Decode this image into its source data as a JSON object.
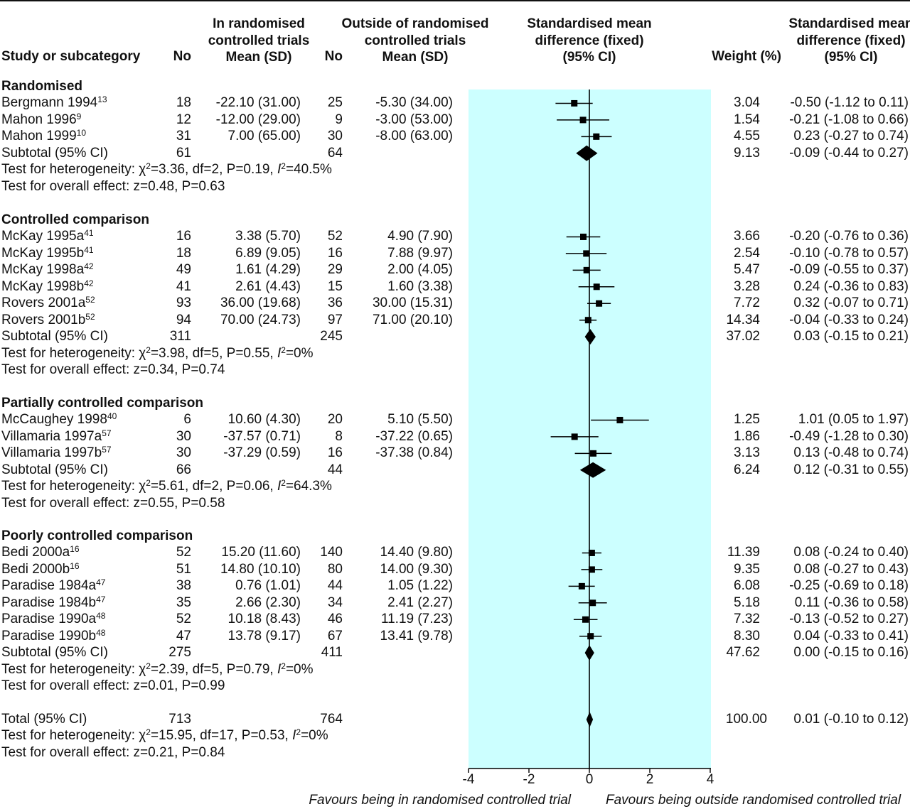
{
  "headers": {
    "study": "Study or subcategory",
    "n1": "No",
    "rct": [
      "In randomised",
      "controlled trials",
      "Mean (SD)"
    ],
    "n2": "No",
    "out": [
      "Outside of randomised",
      "controlled trials",
      "Mean (SD)"
    ],
    "smd_plot": [
      "Standardised mean",
      "difference (fixed)",
      "(95% CI)"
    ],
    "weight": "Weight (%)",
    "smd_text": [
      "Standardised mean",
      "difference (fixed)",
      "(95% CI)"
    ]
  },
  "colors": {
    "panel": "#ccffff",
    "marker": "#000000"
  },
  "groups": [
    {
      "title": "Randomised",
      "studies": [
        {
          "name": "Bergmann 1994",
          "ref": "13",
          "n1": "18",
          "m1": "-22.10 (31.00)",
          "n2": "25",
          "m2": "-5.30 (34.00)",
          "weight": "3.04",
          "ci": "-0.50 (-1.12 to 0.11)",
          "est": -0.5,
          "lo": -1.12,
          "hi": 0.11
        },
        {
          "name": "Mahon 1996",
          "ref": "9",
          "n1": "12",
          "m1": "-12.00 (29.00)",
          "n2": "9",
          "m2": "-3.00 (53.00)",
          "weight": "1.54",
          "ci": "-0.21 (-1.08 to 0.66)",
          "est": -0.21,
          "lo": -1.08,
          "hi": 0.66
        },
        {
          "name": "Mahon 1999",
          "ref": "10",
          "n1": "31",
          "m1": "7.00 (65.00)",
          "n2": "30",
          "m2": "-8.00 (63.00)",
          "weight": "4.55",
          "ci": "0.23 (-0.27 to 0.74)",
          "est": 0.23,
          "lo": -0.27,
          "hi": 0.74
        }
      ],
      "subtotal": {
        "label": "Subtotal (95% CI)",
        "n1": "61",
        "n2": "64",
        "weight": "9.13",
        "ci": "-0.09 (-0.44 to 0.27)",
        "est": -0.09,
        "lo": -0.44,
        "hi": 0.27
      },
      "het": {
        "pre": "Test for heterogeneity: ",
        "chi": "χ",
        "sup": "2",
        "post": "=3.36, df=2, P=0.19, ",
        "i": "I",
        "isup": "2",
        "ival": "=40.5%"
      },
      "overall": "Test for overall effect: z=0.48, P=0.63"
    },
    {
      "title": "Controlled comparison",
      "studies": [
        {
          "name": "McKay 1995a",
          "ref": "41",
          "n1": "16",
          "m1": "3.38 (5.70)",
          "n2": "52",
          "m2": "4.90 (7.90)",
          "weight": "3.66",
          "ci": "-0.20 (-0.76 to 0.36)",
          "est": -0.2,
          "lo": -0.76,
          "hi": 0.36
        },
        {
          "name": "McKay 1995b",
          "ref": "41",
          "n1": "18",
          "m1": "6.89 (9.05)",
          "n2": "16",
          "m2": "7.88 (9.97)",
          "weight": "2.54",
          "ci": "-0.10 (-0.78 to 0.57)",
          "est": -0.1,
          "lo": -0.78,
          "hi": 0.57
        },
        {
          "name": "McKay 1998a",
          "ref": "42",
          "n1": "49",
          "m1": "1.61 (4.29)",
          "n2": "29",
          "m2": "2.00 (4.05)",
          "weight": "5.47",
          "ci": "-0.09 (-0.55 to 0.37)",
          "est": -0.09,
          "lo": -0.55,
          "hi": 0.37
        },
        {
          "name": "McKay 1998b",
          "ref": "42",
          "n1": "41",
          "m1": "2.61 (4.43)",
          "n2": "15",
          "m2": "1.60 (3.38)",
          "weight": "3.28",
          "ci": "0.24 (-0.36 to 0.83)",
          "est": 0.24,
          "lo": -0.36,
          "hi": 0.83
        },
        {
          "name": "Rovers 2001a",
          "ref": "52",
          "n1": "93",
          "m1": "36.00 (19.68)",
          "n2": "36",
          "m2": "30.00 (15.31)",
          "weight": "7.72",
          "ci": "0.32 (-0.07 to 0.71)",
          "est": 0.32,
          "lo": -0.07,
          "hi": 0.71
        },
        {
          "name": "Rovers 2001b",
          "ref": "52",
          "n1": "94",
          "m1": "70.00 (24.73)",
          "n2": "97",
          "m2": "71.00 (20.10)",
          "weight": "14.34",
          "ci": "-0.04 (-0.33 to 0.24)",
          "est": -0.04,
          "lo": -0.33,
          "hi": 0.24
        }
      ],
      "subtotal": {
        "label": "Subtotal (95% CI)",
        "n1": "311",
        "n2": "245",
        "weight": "37.02",
        "ci": "0.03 (-0.15 to 0.21)",
        "est": 0.03,
        "lo": -0.15,
        "hi": 0.21
      },
      "het": {
        "pre": "Test for heterogeneity: ",
        "chi": "χ",
        "sup": "2",
        "post": "=3.98, df=5, P=0.55, ",
        "i": "I",
        "isup": "2",
        "ival": "=0%"
      },
      "overall": "Test for overall effect: z=0.34, P=0.74"
    },
    {
      "title": "Partially controlled comparison",
      "studies": [
        {
          "name": "McCaughey 1998",
          "ref": "40",
          "n1": "6",
          "m1": "10.60 (4.30)",
          "n2": "20",
          "m2": "5.10 (5.50)",
          "weight": "1.25",
          "ci": "1.01 (0.05 to 1.97)",
          "est": 1.01,
          "lo": 0.05,
          "hi": 1.97
        },
        {
          "name": "Villamaria 1997a",
          "ref": "57",
          "n1": "30",
          "m1": "-37.57 (0.71)",
          "n2": "8",
          "m2": "-37.22 (0.65)",
          "weight": "1.86",
          "ci": "-0.49 (-1.28 to 0.30)",
          "est": -0.49,
          "lo": -1.28,
          "hi": 0.3
        },
        {
          "name": "Villamaria 1997b",
          "ref": "57",
          "n1": "30",
          "m1": "-37.29 (0.59)",
          "n2": "16",
          "m2": "-37.38 (0.84)",
          "weight": "3.13",
          "ci": "0.13 (-0.48 to 0.74)",
          "est": 0.13,
          "lo": -0.48,
          "hi": 0.74
        }
      ],
      "subtotal": {
        "label": "Subtotal (95% CI)",
        "n1": "66",
        "n2": "44",
        "weight": "6.24",
        "ci": "0.12 (-0.31 to 0.55)",
        "est": 0.12,
        "lo": -0.31,
        "hi": 0.55
      },
      "het": {
        "pre": "Test for heterogeneity: ",
        "chi": "χ",
        "sup": "2",
        "post": "=5.61, df=2, P=0.06, ",
        "i": "I",
        "isup": "2",
        "ival": "=64.3%"
      },
      "overall": "Test for overall effect: z=0.55, P=0.58"
    },
    {
      "title": "Poorly controlled comparison",
      "studies": [
        {
          "name": "Bedi 2000a",
          "ref": "16",
          "n1": "52",
          "m1": "15.20 (11.60)",
          "n2": "140",
          "m2": "14.40 (9.80)",
          "weight": "11.39",
          "ci": "0.08 (-0.24 to 0.40)",
          "est": 0.08,
          "lo": -0.24,
          "hi": 0.4
        },
        {
          "name": "Bedi 2000b",
          "ref": "16",
          "n1": "51",
          "m1": "14.80 (10.10)",
          "n2": "80",
          "m2": "14.00 (9.30)",
          "weight": "9.35",
          "ci": "0.08 (-0.27 to 0.43)",
          "est": 0.08,
          "lo": -0.27,
          "hi": 0.43
        },
        {
          "name": "Paradise 1984a",
          "ref": "47",
          "n1": "38",
          "m1": "0.76 (1.01)",
          "n2": "44",
          "m2": "1.05 (1.22)",
          "weight": "6.08",
          "ci": "-0.25 (-0.69 to 0.18)",
          "est": -0.25,
          "lo": -0.69,
          "hi": 0.18
        },
        {
          "name": "Paradise 1984b",
          "ref": "47",
          "n1": "35",
          "m1": "2.66 (2.30)",
          "n2": "34",
          "m2": "2.41 (2.27)",
          "weight": "5.18",
          "ci": "0.11 (-0.36 to 0.58)",
          "est": 0.11,
          "lo": -0.36,
          "hi": 0.58
        },
        {
          "name": "Paradise 1990a",
          "ref": "48",
          "n1": "52",
          "m1": "10.18 (8.43)",
          "n2": "46",
          "m2": "11.19 (7.23)",
          "weight": "7.32",
          "ci": "-0.13 (-0.52 to 0.27)",
          "est": -0.13,
          "lo": -0.52,
          "hi": 0.27
        },
        {
          "name": "Paradise 1990b",
          "ref": "48",
          "n1": "47",
          "m1": "13.78 (9.17)",
          "n2": "67",
          "m2": "13.41 (9.78)",
          "weight": "8.30",
          "ci": "0.04 (-0.33 to 0.41)",
          "est": 0.04,
          "lo": -0.33,
          "hi": 0.41
        }
      ],
      "subtotal": {
        "label": "Subtotal (95% CI)",
        "n1": "275",
        "n2": "411",
        "weight": "47.62",
        "ci": "0.00 (-0.15 to 0.16)",
        "est": 0.0,
        "lo": -0.15,
        "hi": 0.16
      },
      "het": {
        "pre": "Test for heterogeneity: ",
        "chi": "χ",
        "sup": "2",
        "post": "=2.39, df=5, P=0.79, ",
        "i": "I",
        "isup": "2",
        "ival": "=0%"
      },
      "overall": "Test for overall effect: z=0.01, P=0.99"
    }
  ],
  "total": {
    "label": "Total (95% CI)",
    "n1": "713",
    "n2": "764",
    "weight": "100.00",
    "ci": "0.01 (-0.10 to 0.12)",
    "est": 0.01,
    "lo": -0.1,
    "hi": 0.12,
    "het": {
      "pre": "Test for heterogeneity: ",
      "chi": "χ",
      "sup": "2",
      "post": "=15.95, df=17, P=0.53, ",
      "i": "I",
      "isup": "2",
      "ival": "=0%"
    },
    "overall": "Test for overall effect: z=0.21, P=0.84"
  },
  "axis": {
    "ticks": [
      "-4",
      "-2",
      "0",
      "2",
      "4"
    ]
  },
  "favours_left": "Favours being in randomised controlled trial",
  "favours_right": "Favours being outside randomised controlled trial",
  "chart_data": {
    "type": "scatter",
    "subtype": "forest",
    "xlim": [
      -4,
      4
    ],
    "xticks": [
      -4,
      -2,
      0,
      2,
      4
    ],
    "series": [
      {
        "name": "Bergmann 1994",
        "group": "Randomised",
        "est": -0.5,
        "lo": -1.12,
        "hi": 0.11,
        "weight": 3.04
      },
      {
        "name": "Mahon 1996",
        "group": "Randomised",
        "est": -0.21,
        "lo": -1.08,
        "hi": 0.66,
        "weight": 1.54
      },
      {
        "name": "Mahon 1999",
        "group": "Randomised",
        "est": 0.23,
        "lo": -0.27,
        "hi": 0.74,
        "weight": 4.55
      },
      {
        "name": "McKay 1995a",
        "group": "Controlled comparison",
        "est": -0.2,
        "lo": -0.76,
        "hi": 0.36,
        "weight": 3.66
      },
      {
        "name": "McKay 1995b",
        "group": "Controlled comparison",
        "est": -0.1,
        "lo": -0.78,
        "hi": 0.57,
        "weight": 2.54
      },
      {
        "name": "McKay 1998a",
        "group": "Controlled comparison",
        "est": -0.09,
        "lo": -0.55,
        "hi": 0.37,
        "weight": 5.47
      },
      {
        "name": "McKay 1998b",
        "group": "Controlled comparison",
        "est": 0.24,
        "lo": -0.36,
        "hi": 0.83,
        "weight": 3.28
      },
      {
        "name": "Rovers 2001a",
        "group": "Controlled comparison",
        "est": 0.32,
        "lo": -0.07,
        "hi": 0.71,
        "weight": 7.72
      },
      {
        "name": "Rovers 2001b",
        "group": "Controlled comparison",
        "est": -0.04,
        "lo": -0.33,
        "hi": 0.24,
        "weight": 14.34
      },
      {
        "name": "McCaughey 1998",
        "group": "Partially controlled comparison",
        "est": 1.01,
        "lo": 0.05,
        "hi": 1.97,
        "weight": 1.25
      },
      {
        "name": "Villamaria 1997a",
        "group": "Partially controlled comparison",
        "est": -0.49,
        "lo": -1.28,
        "hi": 0.3,
        "weight": 1.86
      },
      {
        "name": "Villamaria 1997b",
        "group": "Partially controlled comparison",
        "est": 0.13,
        "lo": -0.48,
        "hi": 0.74,
        "weight": 3.13
      },
      {
        "name": "Bedi 2000a",
        "group": "Poorly controlled comparison",
        "est": 0.08,
        "lo": -0.24,
        "hi": 0.4,
        "weight": 11.39
      },
      {
        "name": "Bedi 2000b",
        "group": "Poorly controlled comparison",
        "est": 0.08,
        "lo": -0.27,
        "hi": 0.43,
        "weight": 9.35
      },
      {
        "name": "Paradise 1984a",
        "group": "Poorly controlled comparison",
        "est": -0.25,
        "lo": -0.69,
        "hi": 0.18,
        "weight": 6.08
      },
      {
        "name": "Paradise 1984b",
        "group": "Poorly controlled comparison",
        "est": 0.11,
        "lo": -0.36,
        "hi": 0.58,
        "weight": 5.18
      },
      {
        "name": "Paradise 1990a",
        "group": "Poorly controlled comparison",
        "est": -0.13,
        "lo": -0.52,
        "hi": 0.27,
        "weight": 7.32
      },
      {
        "name": "Paradise 1990b",
        "group": "Poorly controlled comparison",
        "est": 0.04,
        "lo": -0.33,
        "hi": 0.41,
        "weight": 8.3
      }
    ],
    "subtotals": [
      {
        "group": "Randomised",
        "est": -0.09,
        "lo": -0.44,
        "hi": 0.27,
        "weight": 9.13
      },
      {
        "group": "Controlled comparison",
        "est": 0.03,
        "lo": -0.15,
        "hi": 0.21,
        "weight": 37.02
      },
      {
        "group": "Partially controlled comparison",
        "est": 0.12,
        "lo": -0.31,
        "hi": 0.55,
        "weight": 6.24
      },
      {
        "group": "Poorly controlled comparison",
        "est": 0.0,
        "lo": -0.15,
        "hi": 0.16,
        "weight": 47.62
      }
    ],
    "total": {
      "est": 0.01,
      "lo": -0.1,
      "hi": 0.12,
      "weight": 100.0
    }
  }
}
